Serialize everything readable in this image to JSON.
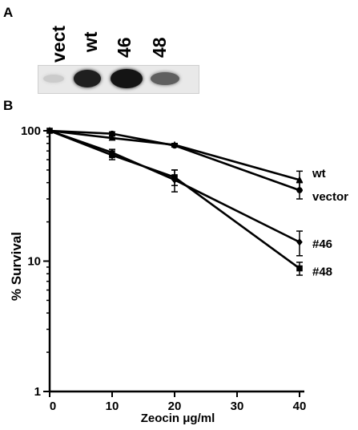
{
  "panel_a": {
    "label": "A",
    "lanes": [
      {
        "label": "vect",
        "intensity": 0.15
      },
      {
        "label": "wt",
        "intensity": 0.95
      },
      {
        "label": "46",
        "intensity": 1.0
      },
      {
        "label": "48",
        "intensity": 0.65
      }
    ]
  },
  "panel_b": {
    "label": "B"
  },
  "chart_data": {
    "type": "line",
    "title": "",
    "xlabel": "Zeocin μg/ml",
    "ylabel": "% Survival",
    "x": [
      0,
      10,
      20,
      40
    ],
    "xlim": [
      0,
      40
    ],
    "ylim": [
      1,
      100
    ],
    "yscale": "log",
    "xticks": [
      0,
      10,
      20,
      30,
      40
    ],
    "yticks": [
      1,
      10,
      100
    ],
    "grid": false,
    "legend": "inline labels at right end of lines",
    "series": [
      {
        "name": "wt",
        "marker": "triangle",
        "values": [
          100,
          88,
          78,
          42
        ],
        "err": [
          0,
          3,
          2,
          7
        ]
      },
      {
        "name": "vector",
        "marker": "circle",
        "values": [
          100,
          95,
          77,
          35
        ],
        "err": [
          0,
          3,
          2,
          5
        ]
      },
      {
        "name": "#46",
        "marker": "diamond",
        "values": [
          100,
          68,
          42,
          14
        ],
        "err": [
          0,
          4,
          8,
          3
        ]
      },
      {
        "name": "#48",
        "marker": "square",
        "values": [
          100,
          65,
          44,
          8.8
        ],
        "err": [
          0,
          5,
          6,
          1
        ]
      }
    ]
  }
}
